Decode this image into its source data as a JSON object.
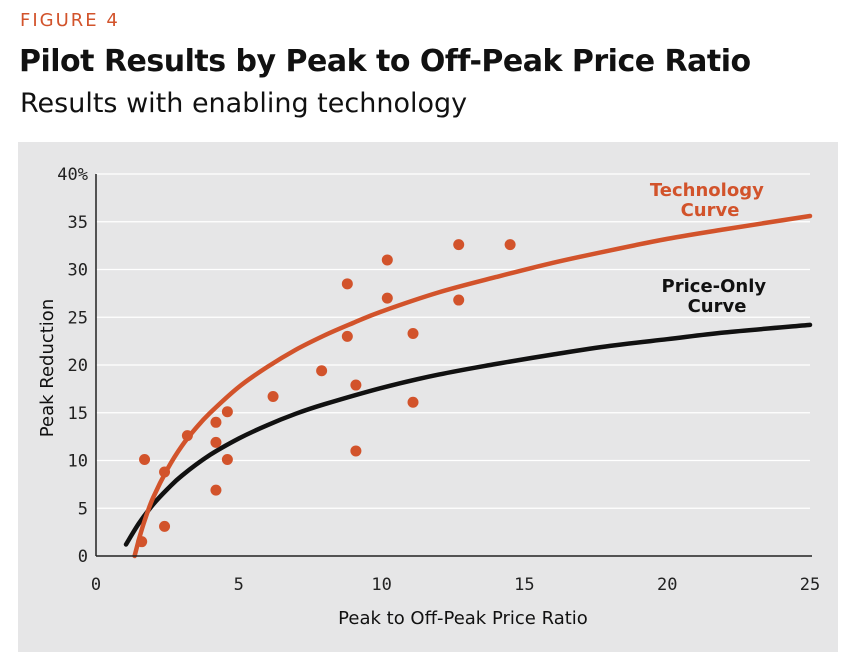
{
  "figure_label": "FIGURE 4",
  "chart_data": {
    "type": "scatter",
    "title": "Pilot Results by Peak to Off-Peak Price Ratio",
    "subtitle": "Results with enabling technology",
    "xlabel": "Peak to Off-Peak Price Ratio",
    "ylabel": "Peak Reduction",
    "xlim": [
      0,
      25
    ],
    "ylim": [
      0,
      40
    ],
    "x_ticks": [
      "0",
      "5",
      "10",
      "15",
      "20",
      "25"
    ],
    "y_ticks": [
      "0",
      "5",
      "10",
      "15",
      "20",
      "25",
      "30",
      "35",
      "40%"
    ],
    "point_color": "#d2532b",
    "points": [
      {
        "x": 1.6,
        "y": 1.5
      },
      {
        "x": 1.7,
        "y": 10.1
      },
      {
        "x": 2.4,
        "y": 8.8
      },
      {
        "x": 2.4,
        "y": 3.1
      },
      {
        "x": 3.2,
        "y": 12.6
      },
      {
        "x": 4.2,
        "y": 14.0
      },
      {
        "x": 4.2,
        "y": 11.9
      },
      {
        "x": 4.2,
        "y": 6.9
      },
      {
        "x": 4.6,
        "y": 15.1
      },
      {
        "x": 4.6,
        "y": 10.1
      },
      {
        "x": 6.2,
        "y": 16.7
      },
      {
        "x": 7.9,
        "y": 19.4
      },
      {
        "x": 8.8,
        "y": 28.5
      },
      {
        "x": 8.8,
        "y": 23.0
      },
      {
        "x": 9.1,
        "y": 17.9
      },
      {
        "x": 9.1,
        "y": 11.0
      },
      {
        "x": 10.2,
        "y": 31.0
      },
      {
        "x": 10.2,
        "y": 27.0
      },
      {
        "x": 11.1,
        "y": 23.3
      },
      {
        "x": 11.1,
        "y": 16.1
      },
      {
        "x": 12.7,
        "y": 32.6
      },
      {
        "x": 12.7,
        "y": 26.8
      },
      {
        "x": 14.5,
        "y": 32.6
      }
    ],
    "series": [
      {
        "name": "Technology Curve",
        "label_lines": [
          "Technology",
          "Curve"
        ],
        "color": "#d2532b",
        "x": [
          1.35,
          1.5,
          1.7,
          2.0,
          2.5,
          3.0,
          3.5,
          4.0,
          5.0,
          6.0,
          7.0,
          8.0,
          9.0,
          10.0,
          12.0,
          14.0,
          16.0,
          18.0,
          20.0,
          22.0,
          25.0
        ],
        "y": [
          0.0,
          1.7,
          3.7,
          6.1,
          9.1,
          11.5,
          13.4,
          15.0,
          17.7,
          19.8,
          21.6,
          23.1,
          24.4,
          25.6,
          27.6,
          29.2,
          30.7,
          32.0,
          33.2,
          34.2,
          35.6
        ]
      },
      {
        "name": "Price-Only Curve",
        "label_lines": [
          "Price-Only",
          "Curve"
        ],
        "color": "#111111",
        "x": [
          1.05,
          1.5,
          2.0,
          2.5,
          3.0,
          4.0,
          5.0,
          6.0,
          7.0,
          8.0,
          10.0,
          12.0,
          14.0,
          16.0,
          18.0,
          20.0,
          22.0,
          25.0
        ],
        "y": [
          1.2,
          3.4,
          5.4,
          7.0,
          8.4,
          10.6,
          12.3,
          13.7,
          14.9,
          15.9,
          17.6,
          19.0,
          20.1,
          21.1,
          22.0,
          22.7,
          23.4,
          24.2
        ]
      }
    ]
  }
}
